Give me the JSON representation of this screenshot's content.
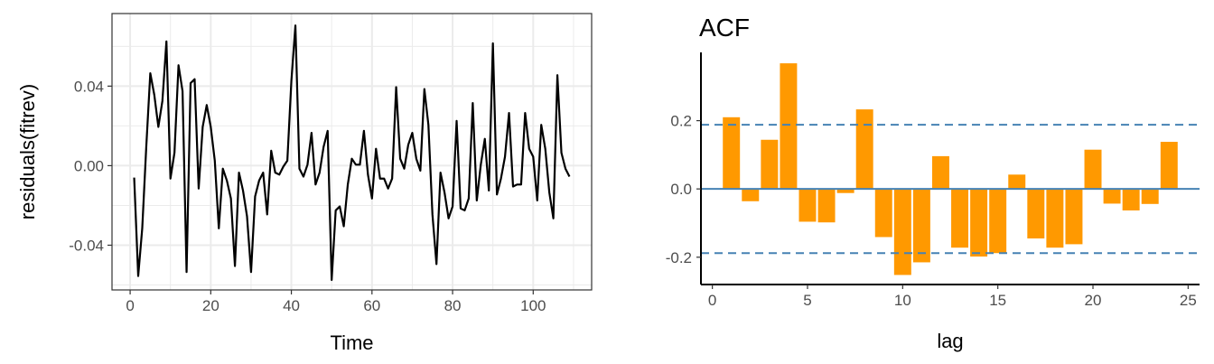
{
  "chart_data": [
    {
      "type": "line",
      "title": "",
      "xlabel": "Time",
      "ylabel": "residuals(fitrev)",
      "xlim": [
        -4.5,
        114.5
      ],
      "ylim": [
        -0.0625,
        0.0765
      ],
      "xticks": [
        0,
        20,
        40,
        60,
        80,
        100
      ],
      "xtick_labels": [
        "0",
        "20",
        "40",
        "60",
        "80",
        "100"
      ],
      "yticks": [
        -0.04,
        0,
        0.04
      ],
      "ytick_labels": [
        "-0.04",
        "0.00",
        "0.04"
      ],
      "grid": true,
      "x": [
        1,
        2,
        3,
        4,
        5,
        6,
        7,
        8,
        9,
        10,
        11,
        12,
        13,
        14,
        15,
        16,
        17,
        18,
        19,
        20,
        21,
        22,
        23,
        24,
        25,
        26,
        27,
        28,
        29,
        30,
        31,
        32,
        33,
        34,
        35,
        36,
        37,
        38,
        39,
        40,
        41,
        42,
        43,
        44,
        45,
        46,
        47,
        48,
        49,
        50,
        51,
        52,
        53,
        54,
        55,
        56,
        57,
        58,
        59,
        60,
        61,
        62,
        63,
        64,
        65,
        66,
        67,
        68,
        69,
        70,
        71,
        72,
        73,
        74,
        75,
        76,
        77,
        78,
        79,
        80,
        81,
        82,
        83,
        84,
        85,
        86,
        87,
        88,
        89,
        90,
        91,
        92,
        93,
        94,
        95,
        96,
        97,
        98,
        99,
        100,
        101,
        102,
        103,
        104,
        105,
        106,
        107,
        108,
        109
      ],
      "series": [
        {
          "values": [
            -0.006,
            -0.0555,
            -0.0315,
            0.0095,
            0.0465,
            0.0355,
            0.0195,
            0.0325,
            0.0625,
            -0.0065,
            0.0065,
            0.0505,
            0.0375,
            -0.0535,
            0.0415,
            0.0435,
            -0.0115,
            0.0195,
            0.0305,
            0.0195,
            0.0025,
            -0.0315,
            -0.0015,
            -0.0075,
            -0.0165,
            -0.0505,
            -0.0035,
            -0.0125,
            -0.0255,
            -0.0535,
            -0.0155,
            -0.0075,
            -0.0035,
            -0.0245,
            0.0075,
            -0.0035,
            -0.0045,
            -0.0005,
            0.0025,
            0.0425,
            0.0705,
            -0.0015,
            -0.0055,
            0.0005,
            0.0165,
            -0.0095,
            -0.0035,
            0.0095,
            0.0175,
            -0.0575,
            -0.0225,
            -0.0205,
            -0.0305,
            -0.0095,
            0.0035,
            0.0005,
            0.0005,
            0.0175,
            -0.0045,
            -0.0165,
            0.0085,
            -0.0065,
            -0.0065,
            -0.0115,
            -0.0065,
            0.0395,
            0.0035,
            -0.0015,
            0.0105,
            0.0165,
            0.0035,
            -0.0025,
            0.0385,
            0.0205,
            -0.0245,
            -0.0495,
            -0.0035,
            -0.0135,
            -0.0265,
            -0.0205,
            0.0225,
            -0.0215,
            -0.0225,
            -0.0165,
            0.0315,
            -0.0175,
            0.0005,
            0.0135,
            -0.0125,
            0.0615,
            -0.0145,
            -0.0065,
            0.0045,
            0.0265,
            -0.0105,
            -0.0095,
            -0.0095,
            0.0265,
            0.0085,
            0.0045,
            -0.0175,
            0.0205,
            0.0085,
            -0.0135,
            -0.0265,
            0.0455,
            0.0065,
            -0.0015,
            -0.0055
          ]
        }
      ]
    },
    {
      "type": "bar",
      "title": "ACF",
      "xlabel": "lag",
      "ylabel": "",
      "xlim": [
        -0.6,
        25.6
      ],
      "ylim": [
        -0.28,
        0.4
      ],
      "xticks": [
        0,
        5,
        10,
        15,
        20,
        25
      ],
      "xtick_labels": [
        "0",
        "5",
        "10",
        "15",
        "20",
        "25"
      ],
      "yticks": [
        -0.2,
        0,
        0.2
      ],
      "ytick_labels": [
        "-0.2",
        "0.0",
        "0.2"
      ],
      "grid": false,
      "bar_color": "#ff9900",
      "line_color": "#4682b4",
      "confidence_limit": 0.188,
      "categories": [
        1,
        2,
        3,
        4,
        5,
        6,
        7,
        8,
        9,
        10,
        11,
        12,
        13,
        14,
        15,
        16,
        17,
        18,
        19,
        20,
        21,
        22,
        23,
        24
      ],
      "values": [
        0.21,
        -0.036,
        0.144,
        0.368,
        -0.096,
        -0.098,
        -0.012,
        0.233,
        -0.141,
        -0.252,
        -0.215,
        0.096,
        -0.172,
        -0.198,
        -0.188,
        0.042,
        -0.145,
        -0.172,
        -0.162,
        0.115,
        -0.043,
        -0.063,
        -0.044,
        0.138
      ]
    }
  ]
}
